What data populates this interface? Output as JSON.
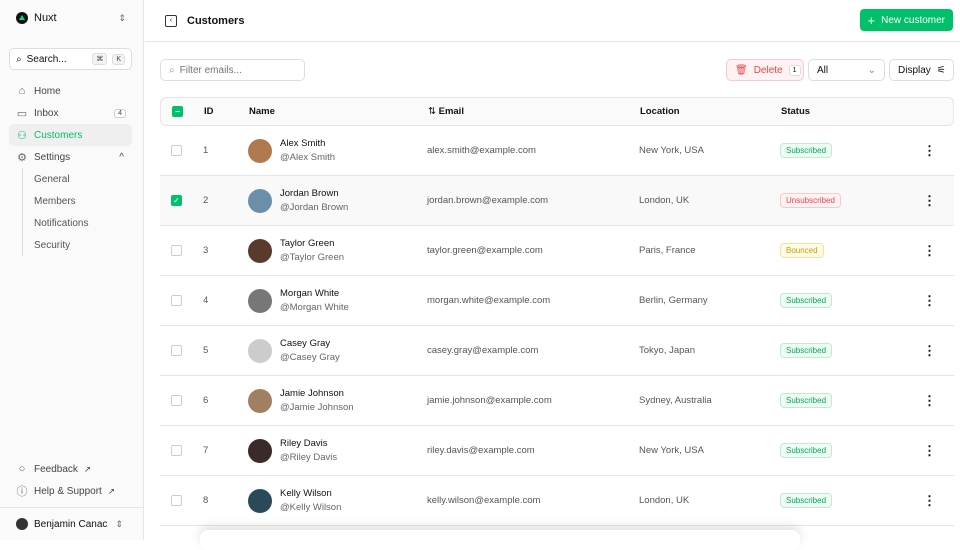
{
  "sidebar": {
    "brand": "Nuxt",
    "search_placeholder": "Search...",
    "kbd": [
      "⌘",
      "K"
    ],
    "items": [
      {
        "label": "Home",
        "icon": "home-icon"
      },
      {
        "label": "Inbox",
        "icon": "inbox-icon",
        "badge": "4"
      },
      {
        "label": "Customers",
        "icon": "users-icon"
      },
      {
        "label": "Settings",
        "icon": "gear-icon"
      }
    ],
    "settings_sub": [
      "General",
      "Members",
      "Notifications",
      "Security"
    ],
    "footer": [
      "Feedback",
      "Help & Support"
    ],
    "user": "Benjamin Canac"
  },
  "header": {
    "title": "Customers",
    "new_button": "New customer"
  },
  "toolbar": {
    "filter_placeholder": "Filter emails...",
    "delete_label": "Delete",
    "delete_count": "1",
    "status_filter": "All",
    "display_label": "Display"
  },
  "table": {
    "columns": [
      "ID",
      "Name",
      "Email",
      "Location",
      "Status"
    ],
    "rows": [
      {
        "id": "1",
        "name": "Alex Smith",
        "handle": "@Alex Smith",
        "email": "alex.smith@example.com",
        "location": "New York, USA",
        "status": "Subscribed",
        "selected": false,
        "avatar": "#b07a50"
      },
      {
        "id": "2",
        "name": "Jordan Brown",
        "handle": "@Jordan Brown",
        "email": "jordan.brown@example.com",
        "location": "London, UK",
        "status": "Unsubscribed",
        "selected": true,
        "avatar": "#6b8fa8"
      },
      {
        "id": "3",
        "name": "Taylor Green",
        "handle": "@Taylor Green",
        "email": "taylor.green@example.com",
        "location": "Paris, France",
        "status": "Bounced",
        "selected": false,
        "avatar": "#5a3a2a"
      },
      {
        "id": "4",
        "name": "Morgan White",
        "handle": "@Morgan White",
        "email": "morgan.white@example.com",
        "location": "Berlin, Germany",
        "status": "Subscribed",
        "selected": false,
        "avatar": "#777777"
      },
      {
        "id": "5",
        "name": "Casey Gray",
        "handle": "@Casey Gray",
        "email": "casey.gray@example.com",
        "location": "Tokyo, Japan",
        "status": "Subscribed",
        "selected": false,
        "avatar": "#cccccc"
      },
      {
        "id": "6",
        "name": "Jamie Johnson",
        "handle": "@Jamie Johnson",
        "email": "jamie.johnson@example.com",
        "location": "Sydney, Australia",
        "status": "Subscribed",
        "selected": false,
        "avatar": "#a08060"
      },
      {
        "id": "7",
        "name": "Riley Davis",
        "handle": "@Riley Davis",
        "email": "riley.davis@example.com",
        "location": "New York, USA",
        "status": "Subscribed",
        "selected": false,
        "avatar": "#3a2a2a"
      },
      {
        "id": "8",
        "name": "Kelly Wilson",
        "handle": "@Kelly Wilson",
        "email": "kelly.wilson@example.com",
        "location": "London, UK",
        "status": "Subscribed",
        "selected": false,
        "avatar": "#2a4a5a"
      }
    ]
  },
  "colors": {
    "accent": "#00c16a",
    "danger": "#ef4444",
    "warning": "#d49b00"
  }
}
